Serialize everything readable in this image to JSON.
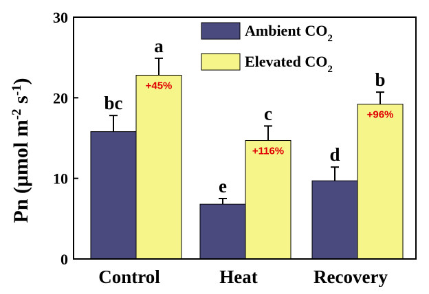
{
  "chart_data": {
    "type": "bar",
    "categories": [
      "Control",
      "Heat",
      "Recovery"
    ],
    "ylabel": {
      "main": "Pn (μmol m",
      "sup1": "-2",
      "mid": " s",
      "sup2": "-1",
      "end": ")"
    },
    "ylim": [
      0,
      30
    ],
    "yticks": [
      0,
      10,
      20,
      30
    ],
    "legend_position": "top-right",
    "series": [
      {
        "name_main": "Ambient CO",
        "name_sub": "2",
        "color": "#4a4a7e",
        "values": [
          15.8,
          6.8,
          9.7
        ],
        "errors": [
          2.0,
          0.7,
          1.7
        ],
        "letters": [
          "bc",
          "e",
          "d"
        ],
        "annotations": [
          "",
          "",
          ""
        ]
      },
      {
        "name_main": "Elevated CO",
        "name_sub": "2",
        "color": "#f5f58a",
        "values": [
          22.8,
          14.7,
          19.2
        ],
        "errors": [
          2.1,
          1.8,
          1.5
        ],
        "letters": [
          "a",
          "c",
          "b"
        ],
        "annotations": [
          "+45%",
          "+116%",
          "+96%"
        ]
      }
    ]
  }
}
